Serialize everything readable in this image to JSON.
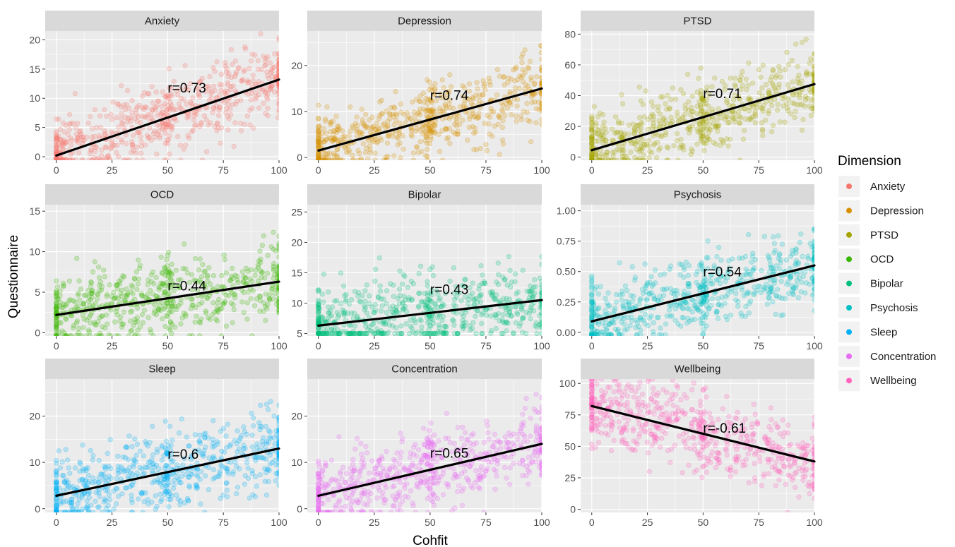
{
  "chart_data": {
    "type": "scatter",
    "xlabel": "Cohfit",
    "ylabel": "Questionnaire",
    "legend": {
      "title": "Dimension",
      "position": "right",
      "items": [
        {
          "label": "Anxiety",
          "color": "#F8766D"
        },
        {
          "label": "Depression",
          "color": "#D89000"
        },
        {
          "label": "PTSD",
          "color": "#A3A500"
        },
        {
          "label": "OCD",
          "color": "#39B600"
        },
        {
          "label": "Bipolar",
          "color": "#00BF7D"
        },
        {
          "label": "Psychosis",
          "color": "#00BFC4"
        },
        {
          "label": "Sleep",
          "color": "#00B0F6"
        },
        {
          "label": "Concentration",
          "color": "#E76BF3"
        },
        {
          "label": "Wellbeing",
          "color": "#FF62BC"
        }
      ]
    },
    "grid": true,
    "facets": [
      {
        "title": "Anxiety",
        "color": "#F8766D",
        "xlim": [
          -5,
          100
        ],
        "ylim": [
          -0.6,
          21.5
        ],
        "x_ticks": [
          0,
          25,
          50,
          75,
          100
        ],
        "x_tick_labels": [
          "0",
          "25",
          "50",
          "75",
          "100"
        ],
        "y_ticks": [
          0,
          5,
          10,
          15,
          20
        ],
        "y_tick_labels": [
          "0",
          "5",
          "10",
          "15",
          "20"
        ],
        "fit_line": {
          "x": [
            0,
            100
          ],
          "y": [
            0.2,
            13.2
          ]
        },
        "annotation": {
          "text": "r=0.73",
          "x": 50,
          "y": 11
        }
      },
      {
        "title": "Depression",
        "color": "#D89000",
        "xlim": [
          -5,
          100
        ],
        "ylim": [
          -0.6,
          27.5
        ],
        "x_ticks": [
          0,
          25,
          50,
          75,
          100
        ],
        "x_tick_labels": [
          "0",
          "25",
          "50",
          "75",
          "100"
        ],
        "y_ticks": [
          0,
          10,
          20
        ],
        "y_tick_labels": [
          "0",
          "10",
          "20"
        ],
        "fit_line": {
          "x": [
            0,
            100
          ],
          "y": [
            1.5,
            15
          ]
        },
        "annotation": {
          "text": "r=0.74",
          "x": 50,
          "y": 12.5
        }
      },
      {
        "title": "PTSD",
        "color": "#A3A500",
        "xlim": [
          -5,
          100
        ],
        "ylim": [
          -2,
          82
        ],
        "x_ticks": [
          0,
          25,
          50,
          75,
          100
        ],
        "x_tick_labels": [
          "0",
          "25",
          "50",
          "75",
          "100"
        ],
        "y_ticks": [
          0,
          20,
          40,
          60,
          80
        ],
        "y_tick_labels": [
          "0",
          "20",
          "40",
          "60",
          "80"
        ],
        "fit_line": {
          "x": [
            0,
            100
          ],
          "y": [
            4.5,
            47.5
          ]
        },
        "annotation": {
          "text": "r=0.71",
          "x": 50,
          "y": 38.5
        }
      },
      {
        "title": "OCD",
        "color": "#39B600",
        "xlim": [
          -5,
          100
        ],
        "ylim": [
          -0.4,
          15.8
        ],
        "x_ticks": [
          0,
          25,
          50,
          75,
          100
        ],
        "x_tick_labels": [
          "0",
          "25",
          "50",
          "75",
          "100"
        ],
        "y_ticks": [
          0,
          5,
          10,
          15
        ],
        "y_tick_labels": [
          "0",
          "5",
          "10",
          "15"
        ],
        "fit_line": {
          "x": [
            0,
            100
          ],
          "y": [
            2.2,
            6.3
          ]
        },
        "annotation": {
          "text": "r=0.44",
          "x": 50,
          "y": 5.2
        }
      },
      {
        "title": "Bipolar",
        "color": "#00BF7D",
        "xlim": [
          -5,
          100
        ],
        "ylim": [
          4.6,
          26.2
        ],
        "x_ticks": [
          0,
          25,
          50,
          75,
          100
        ],
        "x_tick_labels": [
          "0",
          "25",
          "50",
          "75",
          "100"
        ],
        "y_ticks": [
          5,
          10,
          15,
          20,
          25
        ],
        "y_tick_labels": [
          "5",
          "10",
          "15",
          "20",
          "25"
        ],
        "fit_line": {
          "x": [
            0,
            100
          ],
          "y": [
            6.3,
            10.5
          ]
        },
        "annotation": {
          "text": "r=0.43",
          "x": 50,
          "y": 11.5
        }
      },
      {
        "title": "Psychosis",
        "color": "#00BFC4",
        "xlim": [
          -5,
          100
        ],
        "ylim": [
          -0.03,
          1.05
        ],
        "x_ticks": [
          0,
          25,
          50,
          75,
          100
        ],
        "x_tick_labels": [
          "0",
          "25",
          "50",
          "75",
          "100"
        ],
        "y_ticks": [
          0,
          0.25,
          0.5,
          0.75,
          1.0
        ],
        "y_tick_labels": [
          "0.00",
          "0.25",
          "0.50",
          "0.75",
          "1.00"
        ],
        "fit_line": {
          "x": [
            0,
            100
          ],
          "y": [
            0.09,
            0.55
          ]
        },
        "annotation": {
          "text": "r=0.54",
          "x": 50,
          "y": 0.46
        }
      },
      {
        "title": "Sleep",
        "color": "#00B0F6",
        "xlim": [
          -5,
          100
        ],
        "ylim": [
          -0.8,
          28
        ],
        "x_ticks": [
          0,
          25,
          50,
          75,
          100
        ],
        "x_tick_labels": [
          "0",
          "25",
          "50",
          "75",
          "100"
        ],
        "y_ticks": [
          0,
          10,
          20
        ],
        "y_tick_labels": [
          "0",
          "10",
          "20"
        ],
        "fit_line": {
          "x": [
            0,
            100
          ],
          "y": [
            2.8,
            13
          ]
        },
        "annotation": {
          "text": "r=0.6",
          "x": 50,
          "y": 10.8
        }
      },
      {
        "title": "Concentration",
        "color": "#E76BF3",
        "xlim": [
          -5,
          100
        ],
        "ylim": [
          -0.8,
          28
        ],
        "x_ticks": [
          0,
          25,
          50,
          75,
          100
        ],
        "x_tick_labels": [
          "0",
          "25",
          "50",
          "75",
          "100"
        ],
        "y_ticks": [
          0,
          10,
          20
        ],
        "y_tick_labels": [
          "0",
          "10",
          "20"
        ],
        "fit_line": {
          "x": [
            0,
            100
          ],
          "y": [
            2.8,
            14
          ]
        },
        "annotation": {
          "text": "r=0.65",
          "x": 50,
          "y": 11
        }
      },
      {
        "title": "Wellbeing",
        "color": "#FF62BC",
        "xlim": [
          -5,
          100
        ],
        "ylim": [
          -2.5,
          103.5
        ],
        "x_ticks": [
          0,
          25,
          50,
          75,
          100
        ],
        "x_tick_labels": [
          "0",
          "25",
          "50",
          "75",
          "100"
        ],
        "y_ticks": [
          0,
          25,
          50,
          75,
          100
        ],
        "y_tick_labels": [
          "0",
          "25",
          "50",
          "75",
          "100"
        ],
        "fit_line": {
          "x": [
            0,
            100
          ],
          "y": [
            82,
            38
          ]
        },
        "annotation": {
          "text": "r=-0.61",
          "x": 50,
          "y": 61
        }
      }
    ]
  }
}
